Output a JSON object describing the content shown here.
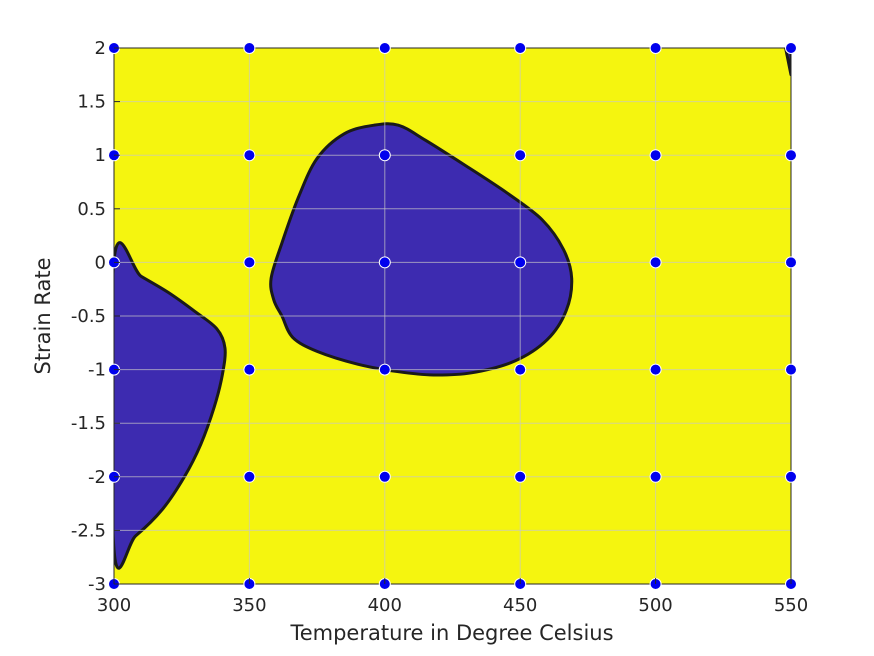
{
  "chart_data": {
    "type": "contour",
    "title": "",
    "xlabel": "Temperature in Degree Celsius",
    "ylabel": "Strain Rate",
    "xlim": [
      300,
      550
    ],
    "ylim": [
      -3,
      2
    ],
    "xticks": [
      300,
      350,
      400,
      450,
      500,
      550
    ],
    "yticks": [
      -3,
      -2.5,
      -2,
      -1.5,
      -1,
      -0.5,
      0,
      0.5,
      1,
      1.5,
      2
    ],
    "xtick_labels": [
      "300",
      "350",
      "400",
      "450",
      "500",
      "550"
    ],
    "ytick_labels": [
      "-3",
      "-2.5",
      "-2",
      "-1.5",
      "-1",
      "-0.5",
      "0",
      "0.5",
      "1",
      "1.5",
      "2"
    ],
    "grid": true,
    "colors": {
      "background_region": "#f5f50f",
      "unstable_region": "#3d2bb0",
      "contour_line": "#1a1a1a",
      "point_fill": "#0000ee",
      "point_edge": "#ffffff",
      "axis": "#262626",
      "grid": "#c8c8c8"
    },
    "regions": [
      {
        "color_key": "unstable_region",
        "polygon": [
          [
            300,
            0.02
          ],
          [
            310,
            -0.13
          ],
          [
            320,
            -0.28
          ],
          [
            330,
            -0.46
          ],
          [
            338,
            -0.62
          ],
          [
            341,
            -0.8
          ],
          [
            340,
            -1.05
          ],
          [
            337,
            -1.35
          ],
          [
            332,
            -1.7
          ],
          [
            326,
            -2.0
          ],
          [
            318,
            -2.3
          ],
          [
            308,
            -2.55
          ],
          [
            300,
            -2.68
          ]
        ]
      },
      {
        "color_key": "unstable_region",
        "polygon": [
          [
            362,
            -0.5
          ],
          [
            366,
            -0.7
          ],
          [
            375,
            -0.83
          ],
          [
            390,
            -0.95
          ],
          [
            405,
            -1.02
          ],
          [
            418,
            -1.05
          ],
          [
            432,
            -1.03
          ],
          [
            448,
            -0.92
          ],
          [
            460,
            -0.72
          ],
          [
            467,
            -0.45
          ],
          [
            469,
            -0.15
          ],
          [
            466,
            0.12
          ],
          [
            458,
            0.4
          ],
          [
            445,
            0.65
          ],
          [
            430,
            0.9
          ],
          [
            415,
            1.14
          ],
          [
            405,
            1.28
          ],
          [
            396,
            1.28
          ],
          [
            385,
            1.2
          ],
          [
            375,
            0.97
          ],
          [
            368,
            0.6
          ],
          [
            362,
            0.18
          ],
          [
            358,
            -0.15
          ],
          [
            359,
            -0.35
          ]
        ]
      },
      {
        "color_key": "unstable_region",
        "polygon": [
          [
            548,
            2
          ],
          [
            550,
            2
          ],
          [
            550,
            1.75
          ]
        ]
      }
    ],
    "points": [
      [
        300,
        2
      ],
      [
        350,
        2
      ],
      [
        400,
        2
      ],
      [
        450,
        2
      ],
      [
        500,
        2
      ],
      [
        550,
        2
      ],
      [
        300,
        1
      ],
      [
        350,
        1
      ],
      [
        400,
        1
      ],
      [
        450,
        1
      ],
      [
        500,
        1
      ],
      [
        550,
        1
      ],
      [
        300,
        0
      ],
      [
        350,
        0
      ],
      [
        400,
        0
      ],
      [
        450,
        0
      ],
      [
        500,
        0
      ],
      [
        550,
        0
      ],
      [
        300,
        -1
      ],
      [
        350,
        -1
      ],
      [
        400,
        -1
      ],
      [
        450,
        -1
      ],
      [
        500,
        -1
      ],
      [
        550,
        -1
      ],
      [
        300,
        -2
      ],
      [
        350,
        -2
      ],
      [
        400,
        -2
      ],
      [
        450,
        -2
      ],
      [
        500,
        -2
      ],
      [
        550,
        -2
      ],
      [
        300,
        -3
      ],
      [
        350,
        -3
      ],
      [
        400,
        -3
      ],
      [
        450,
        -3
      ],
      [
        500,
        -3
      ],
      [
        550,
        -3
      ]
    ]
  }
}
